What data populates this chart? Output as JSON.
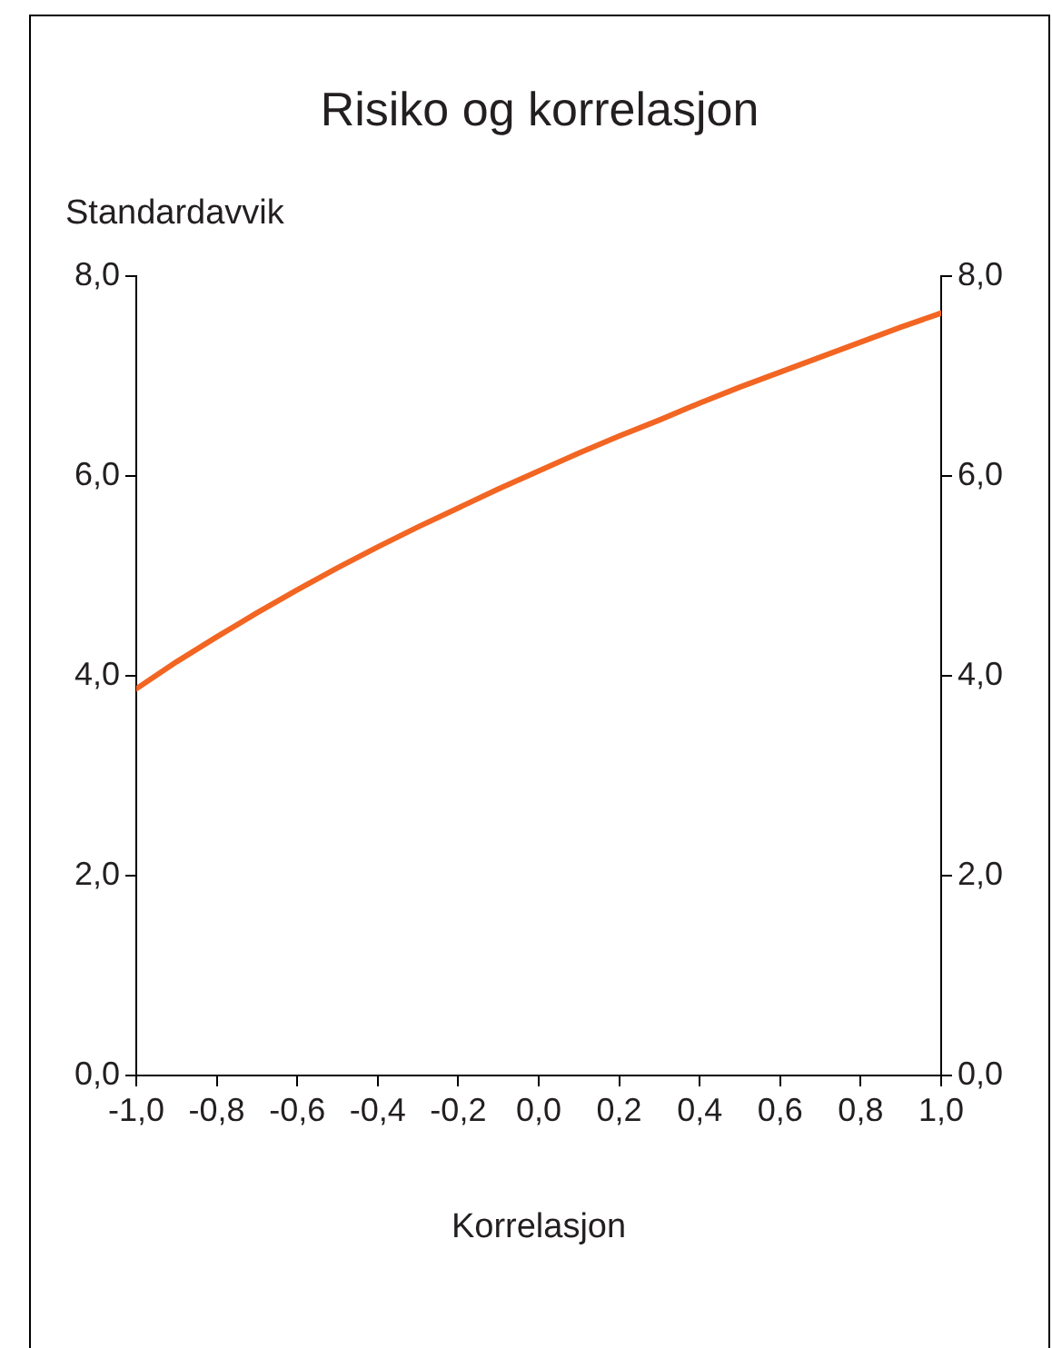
{
  "chart_data": {
    "type": "line",
    "title": "Risiko og korrelasjon",
    "xlabel": "Korrelasjon",
    "ylabel": "Standardavvik",
    "x": [
      -1,
      -0.9,
      -0.8,
      -0.7,
      -0.6,
      -0.5,
      -0.4,
      -0.3,
      -0.2,
      -0.1,
      0,
      0.1,
      0.2,
      0.3,
      0.4,
      0.5,
      0.6,
      0.7,
      0.8,
      0.9,
      1
    ],
    "series": [
      {
        "color": "#f26522",
        "values": [
          3.87,
          4.14,
          4.39,
          4.63,
          4.86,
          5.08,
          5.29,
          5.49,
          5.68,
          5.87,
          6.05,
          6.23,
          6.4,
          6.56,
          6.73,
          6.89,
          7.04,
          7.19,
          7.34,
          7.49,
          7.63
        ]
      }
    ],
    "xlim": [
      -1,
      1
    ],
    "xticks": [
      {
        "value": -1,
        "label": "-1,0"
      },
      {
        "value": -0.8,
        "label": "-0,8"
      },
      {
        "value": -0.6,
        "label": "-0,6"
      },
      {
        "value": -0.4,
        "label": "-0,4"
      },
      {
        "value": -0.2,
        "label": "-0,2"
      },
      {
        "value": 0,
        "label": "0,0"
      },
      {
        "value": 0.2,
        "label": "0,2"
      },
      {
        "value": 0.4,
        "label": "0,4"
      },
      {
        "value": 0.6,
        "label": "0,6"
      },
      {
        "value": 0.8,
        "label": "0,8"
      },
      {
        "value": 1,
        "label": "1,0"
      }
    ],
    "ylim": [
      0,
      8
    ],
    "yticks": [
      {
        "value": 0,
        "label": "0,0"
      },
      {
        "value": 2,
        "label": "2,0"
      },
      {
        "value": 4,
        "label": "4,0"
      },
      {
        "value": 6,
        "label": "6,0"
      },
      {
        "value": 8,
        "label": "8,0"
      }
    ],
    "y2lim": [
      0,
      8
    ],
    "y2ticks": [
      {
        "value": 0,
        "label": "0,0"
      },
      {
        "value": 2,
        "label": "2,0"
      },
      {
        "value": 4,
        "label": "4,0"
      },
      {
        "value": 6,
        "label": "6,0"
      },
      {
        "value": 8,
        "label": "8,0"
      }
    ],
    "grid": false,
    "marker": "none",
    "line_style": "solid"
  }
}
